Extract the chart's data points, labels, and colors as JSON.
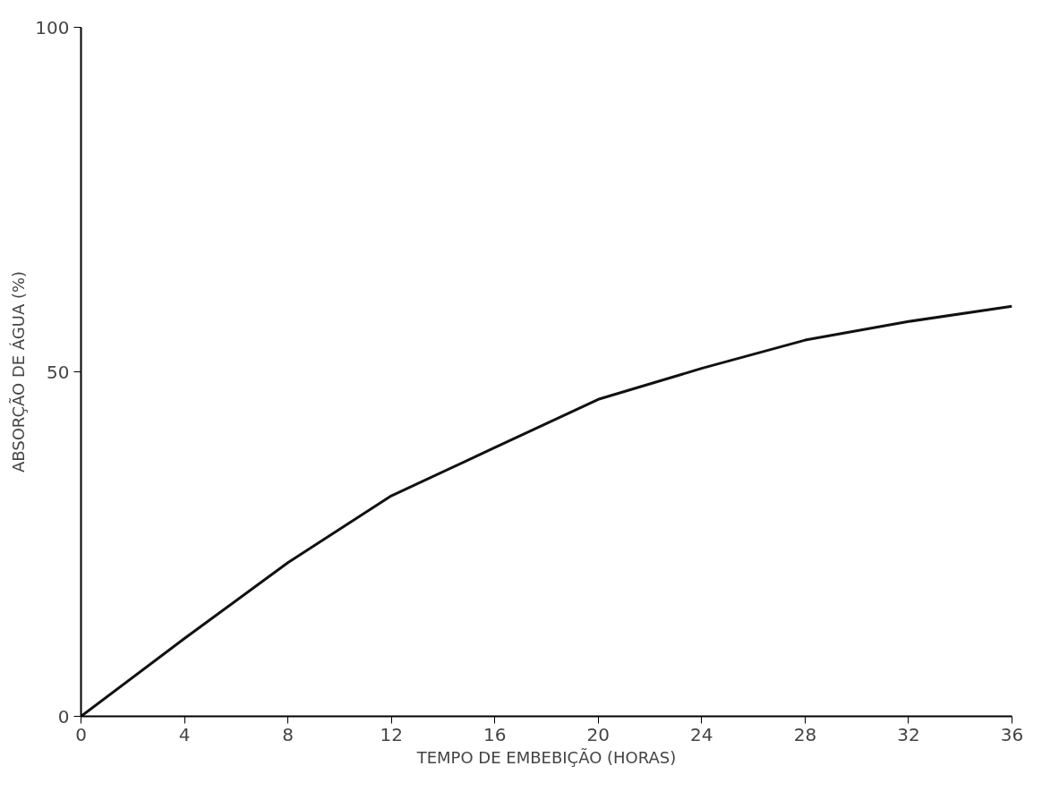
{
  "chart_data": {
    "type": "line",
    "xlabel": "TEMPO DE EMBEBIÇÃO (HORAS)",
    "ylabel": "ABSORÇÃO DE ÁGUA (%)",
    "x": [
      0,
      4,
      8,
      12,
      16,
      20,
      24,
      28,
      32,
      36
    ],
    "series": [
      {
        "color": "#111111",
        "values": [
          0,
          11.3,
          22.3,
          32,
          39,
          46,
          50.5,
          54.6,
          57.3,
          59.5
        ]
      }
    ],
    "xlim": [
      0,
      36
    ],
    "ylim": [
      0,
      100
    ],
    "xticks": [
      0,
      4,
      8,
      12,
      16,
      20,
      24,
      28,
      32,
      36
    ],
    "yticks": [
      0,
      50,
      100
    ],
    "grid": false,
    "marker": "none",
    "line_style": "solid"
  }
}
